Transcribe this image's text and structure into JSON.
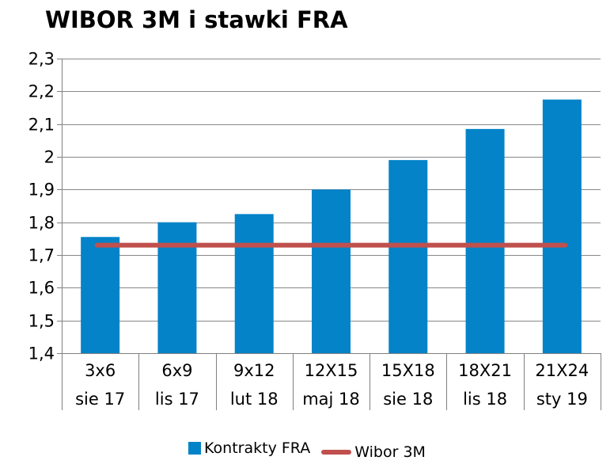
{
  "title": "WIBOR 3M i stawki FRA",
  "colors": {
    "bar": "#0483c8",
    "line": "#c0504d",
    "grid": "#888888",
    "axis": "#808080"
  },
  "chart_data": {
    "type": "bar",
    "title": "WIBOR 3M i stawki FRA",
    "categories": [
      [
        "3x6",
        "sie 17"
      ],
      [
        "6x9",
        "lis 17"
      ],
      [
        "9x12",
        "lut 18"
      ],
      [
        "12X15",
        "maj 18"
      ],
      [
        "15X18",
        "sie 18"
      ],
      [
        "18X21",
        "lis 18"
      ],
      [
        "21X24",
        "sty 19"
      ]
    ],
    "series": [
      {
        "name": "Kontrakty FRA",
        "type": "bar",
        "values": [
          1.755,
          1.8,
          1.825,
          1.9,
          1.99,
          2.085,
          2.175
        ]
      },
      {
        "name": "Wibor 3M",
        "type": "line",
        "values": [
          1.73,
          1.73,
          1.73,
          1.73,
          1.73,
          1.73,
          1.73
        ]
      }
    ],
    "ylim": [
      1.4,
      2.3
    ],
    "yticks": [
      "1,4",
      "1,5",
      "1,6",
      "1,7",
      "1,8",
      "1,9",
      "2",
      "2,1",
      "2,2",
      "2,3"
    ],
    "grid": true,
    "legend": "bottom"
  }
}
